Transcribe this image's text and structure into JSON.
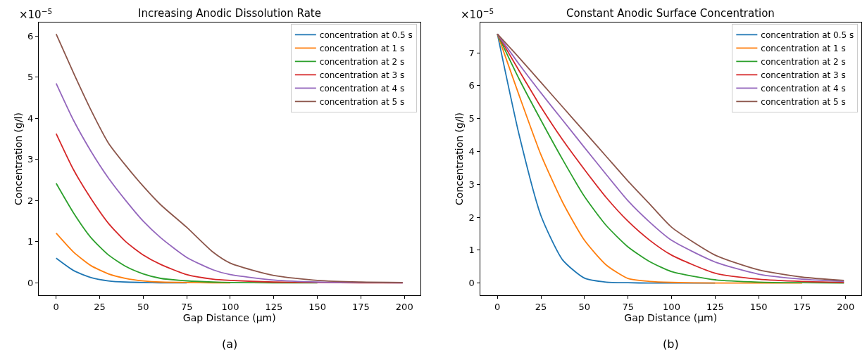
{
  "chart_data": [
    {
      "type": "line",
      "title": "Increasing Anodic Dissolution Rate",
      "xlabel": "Gap Distance (μm)",
      "ylabel": "Concentration (g/l)",
      "annotations": [
        "×10$^{−5}$",
        "(a)"
      ],
      "x": [
        0,
        10,
        20,
        30,
        40,
        50,
        60,
        75,
        90,
        100,
        125,
        150,
        175,
        199
      ],
      "xlim": [
        -10,
        209
      ],
      "xticks": [
        0,
        25,
        50,
        75,
        100,
        125,
        150,
        175,
        200
      ],
      "ylim": [
        -0.3,
        6.33
      ],
      "yticks": [
        0,
        1,
        2,
        3,
        4,
        5,
        6
      ],
      "legend": "top right",
      "marker": "none",
      "line_style": "solid",
      "series": [
        {
          "name": "concentration at 0.5 s",
          "color": "#1f77b4",
          "values": [
            0.6,
            0.3,
            0.13,
            0.05,
            0.02,
            0.01,
            0,
            0,
            null,
            null,
            null,
            null,
            null,
            null
          ]
        },
        {
          "name": "concentration at 1 s",
          "color": "#ff7f0e",
          "values": [
            1.21,
            0.75,
            0.42,
            0.22,
            0.11,
            0.05,
            0.02,
            0.01,
            0,
            0,
            null,
            null,
            null,
            null
          ]
        },
        {
          "name": "concentration at 2 s",
          "color": "#2ca02c",
          "values": [
            2.42,
            1.7,
            1.1,
            0.68,
            0.4,
            0.22,
            0.11,
            0.05,
            0.02,
            0.01,
            0,
            0,
            null,
            null
          ]
        },
        {
          "name": "concentration at 3 s",
          "color": "#d62728",
          "values": [
            3.63,
            2.75,
            2.05,
            1.45,
            1.0,
            0.68,
            0.45,
            0.2,
            0.09,
            0.06,
            0.02,
            0.01,
            0,
            0
          ]
        },
        {
          "name": "concentration at 4 s",
          "color": "#9467bd",
          "values": [
            4.85,
            3.95,
            3.2,
            2.55,
            2.0,
            1.5,
            1.1,
            0.62,
            0.32,
            0.2,
            0.07,
            0.02,
            0.01,
            0
          ]
        },
        {
          "name": "concentration at 5 s",
          "color": "#8c564b",
          "values": [
            6.05,
            5.1,
            4.2,
            3.4,
            2.85,
            2.35,
            1.9,
            1.35,
            0.75,
            0.48,
            0.18,
            0.06,
            0.02,
            0.01
          ]
        }
      ]
    },
    {
      "type": "line",
      "title": "Constant Anodic Surface Concentration",
      "xlabel": "Gap Distance (μm)",
      "ylabel": "Concentration (g/l)",
      "annotations": [
        "×10$^{−5}$",
        "(b)"
      ],
      "x": [
        0,
        12.5,
        25,
        37.5,
        50,
        62.5,
        75,
        87.5,
        100,
        125,
        150,
        175,
        199
      ],
      "xlim": [
        -10,
        209
      ],
      "xticks": [
        0,
        25,
        50,
        75,
        100,
        125,
        150,
        175,
        200
      ],
      "ylim": [
        -0.37,
        7.92
      ],
      "yticks": [
        0,
        1,
        2,
        3,
        4,
        5,
        6,
        7
      ],
      "legend": "top right",
      "marker": "none",
      "line_style": "solid",
      "series": [
        {
          "name": "concentration at 0.5 s",
          "color": "#1f77b4",
          "values": [
            7.57,
            4.5,
            2.05,
            0.7,
            0.15,
            0.03,
            0.01,
            0,
            0,
            0,
            null,
            null,
            null
          ]
        },
        {
          "name": "concentration at 1 s",
          "color": "#ff7f0e",
          "values": [
            7.57,
            5.7,
            3.9,
            2.45,
            1.3,
            0.55,
            0.14,
            0.05,
            0.02,
            0,
            0,
            0,
            null
          ]
        },
        {
          "name": "concentration at 2 s",
          "color": "#2ca02c",
          "values": [
            7.57,
            6.2,
            4.95,
            3.75,
            2.63,
            1.75,
            1.1,
            0.65,
            0.35,
            0.1,
            0.03,
            0.01,
            0
          ]
        },
        {
          "name": "concentration at 3 s",
          "color": "#d62728",
          "values": [
            7.57,
            6.45,
            5.35,
            4.35,
            3.45,
            2.6,
            1.88,
            1.3,
            0.85,
            0.3,
            0.12,
            0.05,
            0.02
          ]
        },
        {
          "name": "concentration at 4 s",
          "color": "#9467bd",
          "values": [
            7.57,
            6.65,
            5.78,
            4.95,
            4.12,
            3.3,
            2.5,
            1.85,
            1.3,
            0.64,
            0.27,
            0.12,
            0.05
          ]
        },
        {
          "name": "concentration at 5 s",
          "color": "#8c564b",
          "values": [
            7.57,
            6.85,
            6.1,
            5.35,
            4.6,
            3.85,
            3.1,
            2.4,
            1.7,
            0.85,
            0.4,
            0.18,
            0.08
          ]
        }
      ]
    }
  ]
}
